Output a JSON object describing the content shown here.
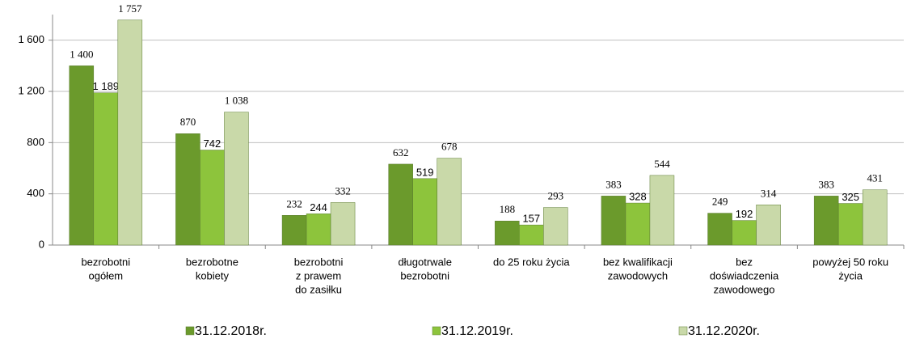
{
  "chart_data": {
    "type": "bar",
    "categories": [
      [
        "bezrobotni",
        "ogółem"
      ],
      [
        "bezrobotne",
        "kobiety"
      ],
      [
        "bezrobotni",
        "z prawem",
        "do zasiłku"
      ],
      [
        "długotrwale",
        "bezrobotni"
      ],
      [
        "do 25 roku życia"
      ],
      [
        "bez kwalifikacji",
        "zawodowych"
      ],
      [
        "bez",
        "doświadczenia",
        "zawodowego"
      ],
      [
        "powyżej 50 roku",
        "życia"
      ]
    ],
    "series": [
      {
        "name": "31.12.2018r.",
        "color": "#6b9a2c",
        "values": [
          1400,
          870,
          232,
          632,
          188,
          383,
          249,
          383
        ],
        "value_labels": [
          "1 400",
          "870",
          "232",
          "632",
          "188",
          "383",
          "249",
          "383"
        ]
      },
      {
        "name": "31.12.2019r.",
        "color": "#8dc43c",
        "values": [
          1189,
          742,
          244,
          519,
          157,
          328,
          192,
          325
        ],
        "value_labels": [
          "1 189",
          "742",
          "244",
          "519",
          "157",
          "328",
          "192",
          "325"
        ]
      },
      {
        "name": "31.12.2020r.",
        "color": "#c9d9a9",
        "values": [
          1757,
          1038,
          332,
          678,
          293,
          544,
          314,
          431
        ],
        "value_labels": [
          "1 757",
          "1 038",
          "332",
          "678",
          "293",
          "544",
          "314",
          "431"
        ]
      }
    ],
    "ylim": [
      0,
      1800
    ],
    "yticks": [
      0,
      400,
      800,
      {
        "value": 1200,
        "label": "1 200"
      },
      {
        "value": 1600,
        "label": "1 600"
      }
    ],
    "grid": true
  }
}
